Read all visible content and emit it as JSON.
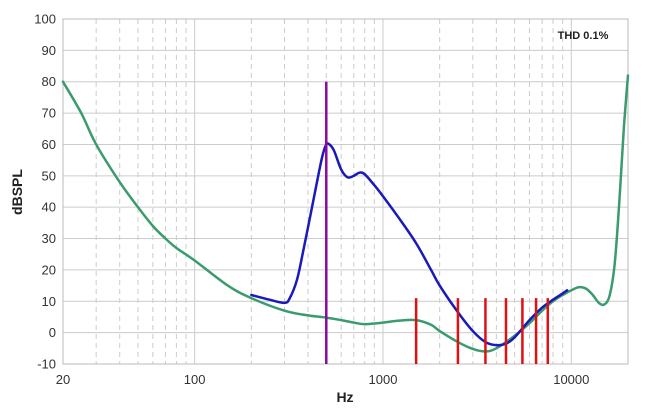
{
  "chart_data": {
    "type": "line",
    "xlabel": "Hz",
    "ylabel": "dBSPL",
    "xscale": "log",
    "xlim": [
      20,
      20000
    ],
    "ylim": [
      -10,
      100
    ],
    "x_ticks": [
      20,
      100,
      1000,
      10000
    ],
    "y_ticks": [
      -10,
      0,
      10,
      20,
      30,
      40,
      50,
      60,
      70,
      80,
      90,
      100
    ],
    "grid": true,
    "annotation": "THD 0.1%",
    "colors": {
      "noise_floor": "#3a9b6e",
      "response": "#1a1ab8",
      "fundamental": "#8a0aa0",
      "harmonics": "#dd1111",
      "grid_major": "#cccccc",
      "grid_minor": "#cccccc"
    },
    "series": [
      {
        "key": "noise_floor",
        "x": [
          20,
          25,
          30,
          40,
          50,
          60,
          70,
          80,
          100,
          150,
          200,
          300,
          400,
          500,
          600,
          700,
          800,
          1000,
          1200,
          1500,
          1800,
          2000,
          2500,
          3000,
          3500,
          4000,
          5000,
          6000,
          7000,
          8000,
          9000,
          10000,
          11000,
          12000,
          13000,
          14000,
          15000,
          16000,
          17000,
          18000,
          19000,
          20000
        ],
        "y": [
          80,
          70,
          60,
          48,
          40,
          34,
          30,
          27,
          23,
          15,
          11,
          7,
          5.5,
          4.8,
          4,
          3.2,
          2.7,
          3.2,
          3.8,
          4,
          2.5,
          0.5,
          -3,
          -5.2,
          -6,
          -5,
          -1,
          3,
          7,
          10,
          12,
          13.5,
          14.5,
          14,
          12,
          9.5,
          9,
          12,
          22,
          42,
          65,
          82
        ]
      },
      {
        "key": "response",
        "x": [
          200,
          250,
          300,
          320,
          350,
          380,
          420,
          460,
          480,
          500,
          520,
          550,
          600,
          650,
          700,
          750,
          800,
          900,
          1000,
          1200,
          1500,
          1800,
          2000,
          2500,
          3000,
          3500,
          4000,
          4500,
          5000,
          6000,
          7000,
          8000,
          9000,
          9500
        ],
        "y": [
          12,
          10.5,
          9.5,
          11,
          17,
          27,
          40,
          52,
          57,
          60,
          60,
          58,
          52,
          49.5,
          50,
          51,
          50.5,
          47,
          43.5,
          37,
          28.5,
          20,
          15,
          6.5,
          0.5,
          -3,
          -4,
          -3.5,
          -1.5,
          4,
          8,
          10.5,
          12.5,
          13.5
        ]
      }
    ],
    "spikes": [
      {
        "key": "fundamental",
        "x": 500,
        "y": 80
      },
      {
        "key": "harmonics",
        "x": 1500,
        "y": 11
      },
      {
        "key": "harmonics",
        "x": 2500,
        "y": 11
      },
      {
        "key": "harmonics",
        "x": 3500,
        "y": 11
      },
      {
        "key": "harmonics",
        "x": 4500,
        "y": 11
      },
      {
        "key": "harmonics",
        "x": 5500,
        "y": 11
      },
      {
        "key": "harmonics",
        "x": 6500,
        "y": 11
      },
      {
        "key": "harmonics",
        "x": 7500,
        "y": 11
      }
    ]
  }
}
